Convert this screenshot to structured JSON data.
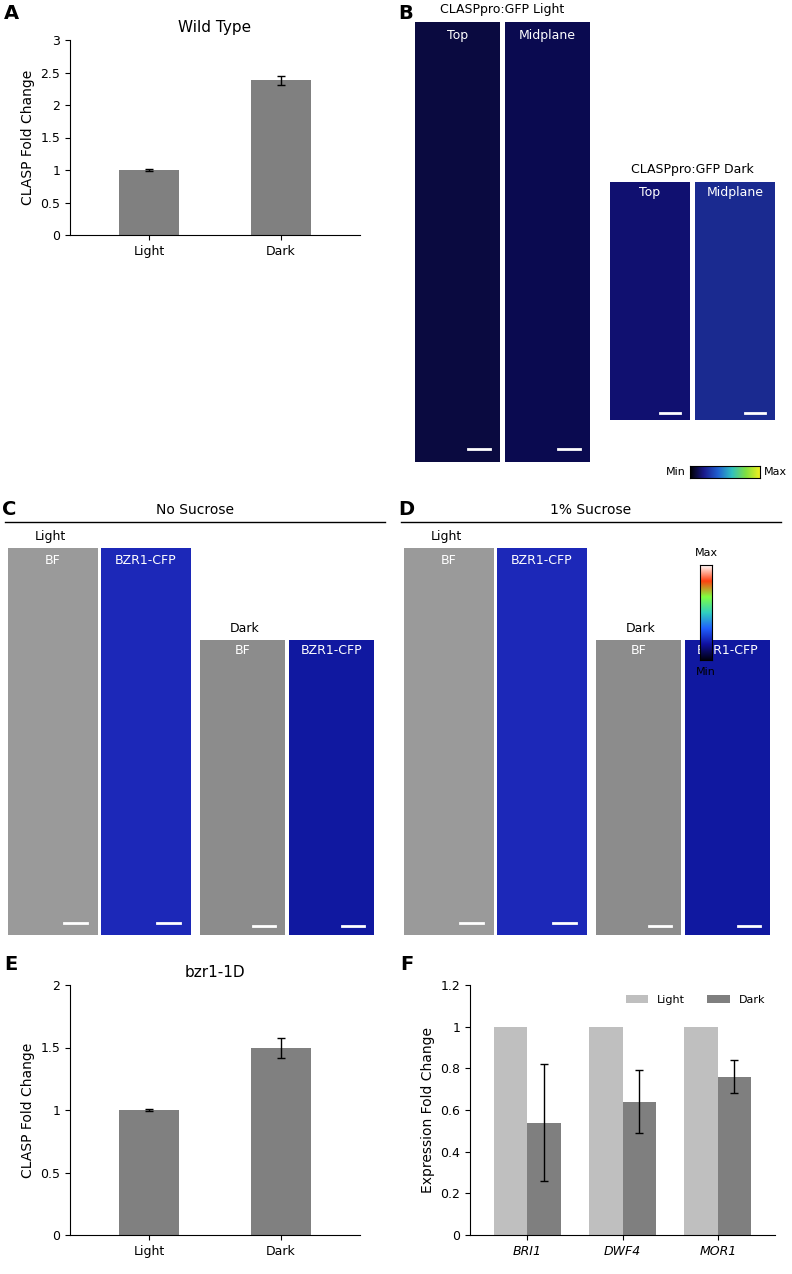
{
  "chart_data": [
    {
      "type": "bar",
      "panel": "A",
      "title": "Wild Type",
      "y_label": "CLASP Fold Change",
      "categories": [
        "Light",
        "Dark"
      ],
      "values": [
        1,
        2.38
      ],
      "errors": [
        0.01,
        0.07
      ],
      "color": "#808080",
      "ylim": [
        0,
        3
      ],
      "yticks": [
        0,
        0.5,
        1,
        1.5,
        2,
        2.5,
        3
      ],
      "grid": false
    },
    {
      "type": "bar",
      "panel": "E",
      "title": "bzr1-1D",
      "y_label": "CLASP Fold Change",
      "categories": [
        "Light",
        "Dark"
      ],
      "values": [
        1,
        1.5
      ],
      "errors": [
        0.005,
        0.08
      ],
      "color": "#808080",
      "ylim": [
        0,
        2
      ],
      "yticks": [
        0,
        0.5,
        1,
        1.5,
        2
      ],
      "grid": false
    },
    {
      "type": "bar",
      "panel": "F",
      "y_label": "Expression Fold Change",
      "categories": [
        "BRI1",
        "DWF4",
        "MOR1"
      ],
      "series": [
        {
          "name": "Light",
          "color": "#bfbfbf",
          "values": [
            1,
            1,
            1
          ]
        },
        {
          "name": "Dark",
          "color": "#7f7f7f",
          "values": [
            0.54,
            0.64,
            0.76
          ],
          "errors": [
            0.28,
            0.15,
            0.08
          ]
        }
      ],
      "ylim": [
        0,
        1.2
      ],
      "yticks": [
        0,
        0.2,
        0.4,
        0.6,
        0.8,
        1,
        1.2
      ],
      "legend": "upper right",
      "grid": false
    }
  ],
  "image_panels": [
    {
      "panel": "B",
      "groups": [
        {
          "title": "CLASPpro:GFP Light",
          "images": [
            "Top",
            "Midplane"
          ]
        },
        {
          "title": "CLASPpro:GFP Dark",
          "images": [
            "Top",
            "Midplane"
          ]
        }
      ],
      "scale": {
        "min": "Min",
        "max": "Max"
      }
    },
    {
      "panel": "C",
      "header": "No Sucrose",
      "groups": [
        {
          "title": "Light",
          "images": [
            "BF",
            "BZR1-CFP"
          ]
        },
        {
          "title": "Dark",
          "images": [
            "BF",
            "BZR1-CFP"
          ]
        }
      ]
    },
    {
      "panel": "D",
      "header": "1% Sucrose",
      "groups": [
        {
          "title": "Light",
          "images": [
            "BF",
            "BZR1-CFP"
          ]
        },
        {
          "title": "Dark",
          "images": [
            "BF",
            "BZR1-CFP"
          ]
        }
      ],
      "scale": {
        "min": "Min",
        "max": "Max"
      }
    }
  ]
}
